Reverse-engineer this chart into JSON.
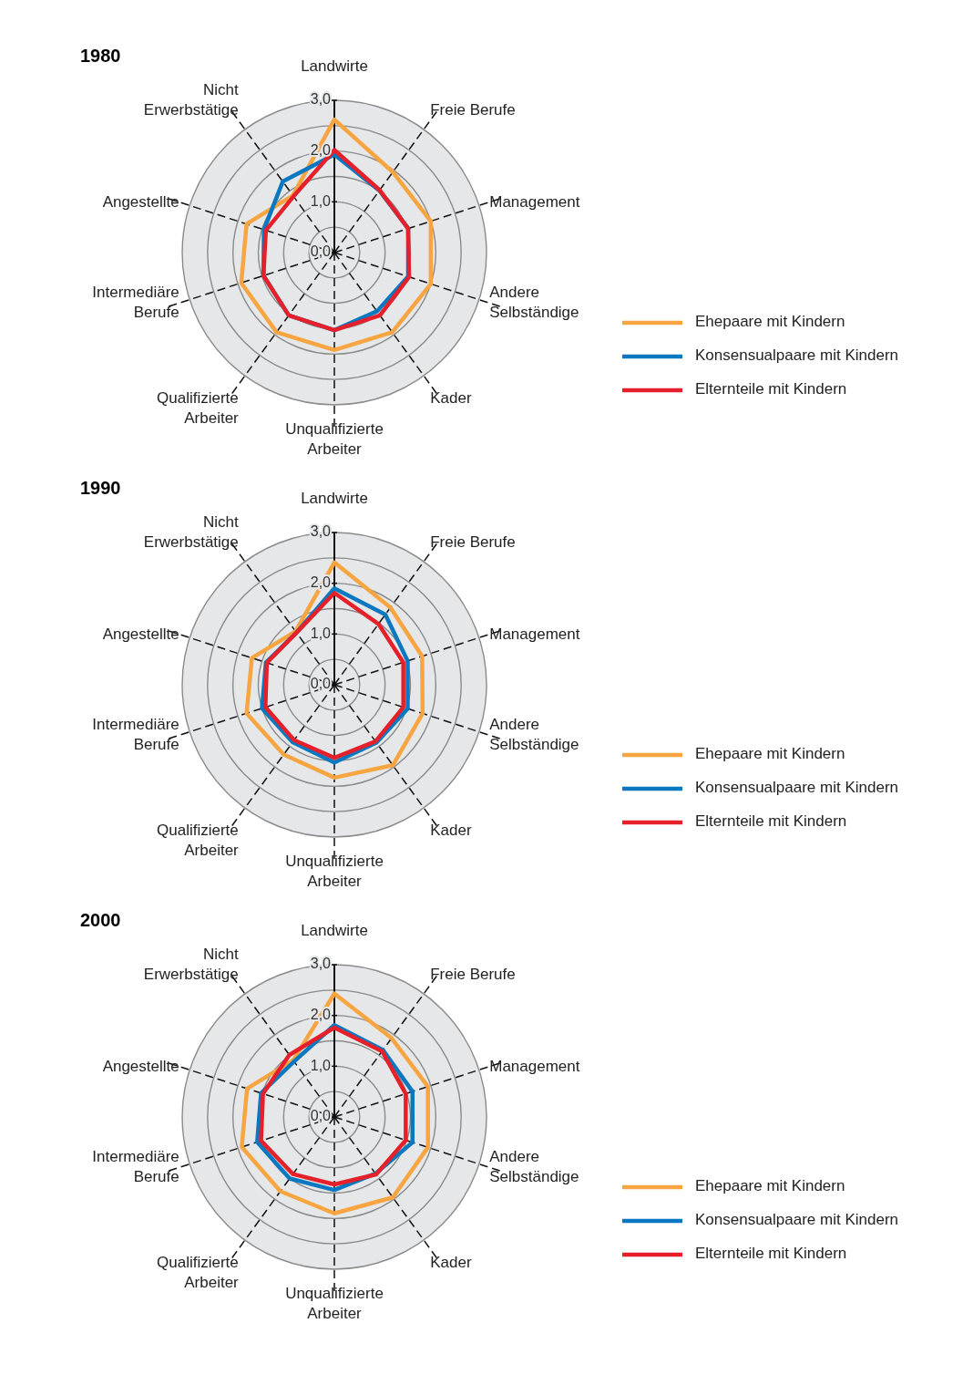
{
  "chart_data": [
    {
      "type": "radar",
      "title": "1980",
      "categories": [
        "Landwirte",
        "Freie Berufe",
        "Management",
        "Andere Selbständige",
        "Kader",
        "Unqualifizierte Arbeiter",
        "Qualifizierte Arbeiter",
        "Intermediäre Berufe",
        "Angestellte",
        "Nicht Erwerbstätige"
      ],
      "ylim": [
        0,
        3
      ],
      "yticks": [
        {
          "value": 0,
          "label": "0,0"
        },
        {
          "value": 1,
          "label": "1,0"
        },
        {
          "value": 2,
          "label": "2,0"
        },
        {
          "value": 3,
          "label": "3,0"
        }
      ],
      "grid": true,
      "legend": "right",
      "marker": "none",
      "line_style": "solid",
      "series": [
        {
          "name": "Ehepaare mit Kindern",
          "color": "#f7a541",
          "values": [
            2.62,
            1.96,
            2.0,
            2.0,
            1.94,
            1.92,
            1.94,
            1.93,
            1.82,
            1.39
          ]
        },
        {
          "name": "Konsensualpaare mit Kindern",
          "color": "#0a78c0",
          "values": [
            1.93,
            1.51,
            1.53,
            1.53,
            1.43,
            1.53,
            1.53,
            1.47,
            1.46,
            1.73
          ]
        },
        {
          "name": "Elternteile mit Kindern",
          "color": "#e5202a",
          "values": [
            2.02,
            1.52,
            1.53,
            1.55,
            1.53,
            1.53,
            1.53,
            1.47,
            1.42,
            1.37
          ]
        }
      ]
    },
    {
      "type": "radar",
      "title": "1990",
      "categories": [
        "Landwirte",
        "Freie Berufe",
        "Management",
        "Andere Selbständige",
        "Kader",
        "Unqualifizierte Arbeiter",
        "Qualifizierte Arbeiter",
        "Intermediäre Berufe",
        "Angestellte",
        "Nicht Erwerbstätige"
      ],
      "ylim": [
        0,
        3
      ],
      "yticks": [
        {
          "value": 0,
          "label": "0,0"
        },
        {
          "value": 1,
          "label": "1,0"
        },
        {
          "value": 2,
          "label": "2,0"
        },
        {
          "value": 3,
          "label": "3,0"
        }
      ],
      "grid": true,
      "legend": "right",
      "marker": "none",
      "line_style": "solid",
      "series": [
        {
          "name": "Ehepaare mit Kindern",
          "color": "#f7a541",
          "values": [
            2.41,
            1.88,
            1.82,
            1.83,
            1.96,
            1.83,
            1.7,
            1.82,
            1.71,
            1.3
          ]
        },
        {
          "name": "Konsensualpaare mit Kindern",
          "color": "#0a78c0",
          "values": [
            1.9,
            1.71,
            1.52,
            1.52,
            1.41,
            1.53,
            1.4,
            1.5,
            1.42,
            1.27
          ]
        },
        {
          "name": "Elternteile mit Kindern",
          "color": "#e5202a",
          "values": [
            1.81,
            1.48,
            1.43,
            1.43,
            1.38,
            1.44,
            1.35,
            1.43,
            1.4,
            1.27
          ]
        }
      ]
    },
    {
      "type": "radar",
      "title": "2000",
      "categories": [
        "Landwirte",
        "Freie Berufe",
        "Management",
        "Andere Selbständige",
        "Kader",
        "Unqualifizierte Arbeiter",
        "Qualifizierte Arbeiter",
        "Intermediäre Berufe",
        "Angestellte",
        "Nicht Erwerbstätige"
      ],
      "ylim": [
        0,
        3
      ],
      "yticks": [
        {
          "value": 0,
          "label": "0,0"
        },
        {
          "value": 1,
          "label": "1,0"
        },
        {
          "value": 2,
          "label": "2,0"
        },
        {
          "value": 3,
          "label": "3,0"
        }
      ],
      "grid": true,
      "legend": "right",
      "marker": "none",
      "line_style": "solid",
      "series": [
        {
          "name": "Ehepaare mit Kindern",
          "color": "#f7a541",
          "values": [
            2.43,
            1.92,
            1.94,
            1.94,
            1.96,
            1.9,
            1.81,
            1.92,
            1.81,
            1.38
          ]
        },
        {
          "name": "Konsensualpaare mit Kindern",
          "color": "#0a78c0",
          "values": [
            1.81,
            1.63,
            1.62,
            1.62,
            1.38,
            1.44,
            1.5,
            1.6,
            1.52,
            1.35
          ]
        },
        {
          "name": "Elternteile mit Kindern",
          "color": "#e5202a",
          "values": [
            1.76,
            1.6,
            1.48,
            1.48,
            1.4,
            1.33,
            1.39,
            1.52,
            1.48,
            1.51
          ]
        }
      ]
    }
  ]
}
